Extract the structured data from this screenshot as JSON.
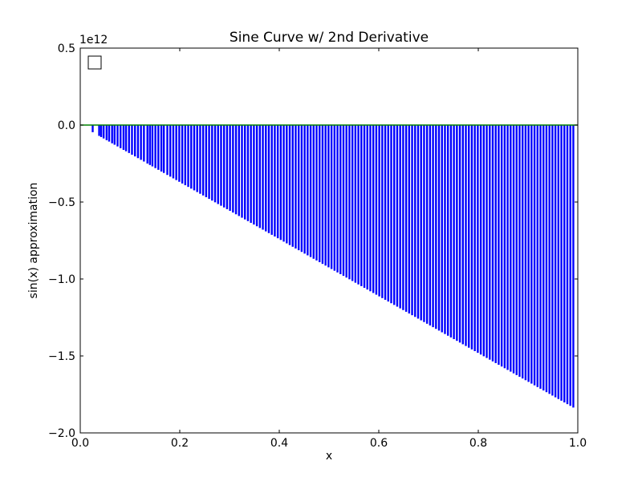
{
  "chart_data": {
    "type": "bar",
    "title": "Sine Curve w/ 2nd Derivative",
    "xlabel": "x",
    "ylabel": "sin(x) approximation",
    "offset_text": "1e12",
    "xlim": [
      0.0,
      1.0
    ],
    "ylim": [
      -2.0,
      0.5
    ],
    "x_ticks": [
      "0.0",
      "0.2",
      "0.4",
      "0.6",
      "0.8",
      "1.0"
    ],
    "y_ticks": [
      "0.5",
      "0.0",
      "−0.5",
      "−1.0",
      "−1.5",
      "−2.0"
    ],
    "grid": false,
    "legend": {
      "placement": "top-left",
      "entries": [
        ""
      ]
    },
    "series": [
      {
        "type": "bar",
        "color": "#0000ff",
        "x": [
          0.025,
          0.038,
          0.042,
          0.047,
          0.053,
          0.058,
          0.064,
          0.069,
          0.075,
          0.081,
          0.087,
          0.092,
          0.098,
          0.104,
          0.11,
          0.116,
          0.122,
          0.128,
          0.135,
          0.14,
          0.145,
          0.151,
          0.157,
          0.163,
          0.168,
          0.175,
          0.181,
          0.187,
          0.193,
          0.199,
          0.205,
          0.211,
          0.217,
          0.223,
          0.229,
          0.235,
          0.241,
          0.247,
          0.253,
          0.259,
          0.265,
          0.271,
          0.277,
          0.283,
          0.289,
          0.295,
          0.301,
          0.307,
          0.313,
          0.319,
          0.325,
          0.331,
          0.337,
          0.343,
          0.349,
          0.355,
          0.361,
          0.367,
          0.373,
          0.379,
          0.385,
          0.391,
          0.397,
          0.403,
          0.409,
          0.415,
          0.421,
          0.427,
          0.433,
          0.439,
          0.445,
          0.451,
          0.457,
          0.463,
          0.469,
          0.475,
          0.481,
          0.487,
          0.493,
          0.499,
          0.505,
          0.511,
          0.517,
          0.523,
          0.529,
          0.535,
          0.541,
          0.547,
          0.553,
          0.559,
          0.565,
          0.571,
          0.577,
          0.583,
          0.589,
          0.595,
          0.601,
          0.607,
          0.613,
          0.619,
          0.625,
          0.631,
          0.637,
          0.643,
          0.649,
          0.655,
          0.661,
          0.667,
          0.673,
          0.679,
          0.685,
          0.691,
          0.697,
          0.703,
          0.709,
          0.715,
          0.721,
          0.727,
          0.733,
          0.739,
          0.745,
          0.751,
          0.757,
          0.763,
          0.769,
          0.775,
          0.781,
          0.787,
          0.793,
          0.799,
          0.805,
          0.811,
          0.817,
          0.823,
          0.829,
          0.835,
          0.841,
          0.847,
          0.853,
          0.859,
          0.865,
          0.871,
          0.877,
          0.883,
          0.889,
          0.895,
          0.901,
          0.907,
          0.913,
          0.919,
          0.925,
          0.931,
          0.937,
          0.943,
          0.949,
          0.955,
          0.961,
          0.967,
          0.973,
          0.979,
          0.985,
          0.991
        ],
        "slope": -1852000000000.0,
        "y_unit": "1e12"
      },
      {
        "type": "line",
        "color": "#008000",
        "x": [
          0.0,
          1.0
        ],
        "y": [
          0.0,
          0.0
        ]
      }
    ]
  }
}
